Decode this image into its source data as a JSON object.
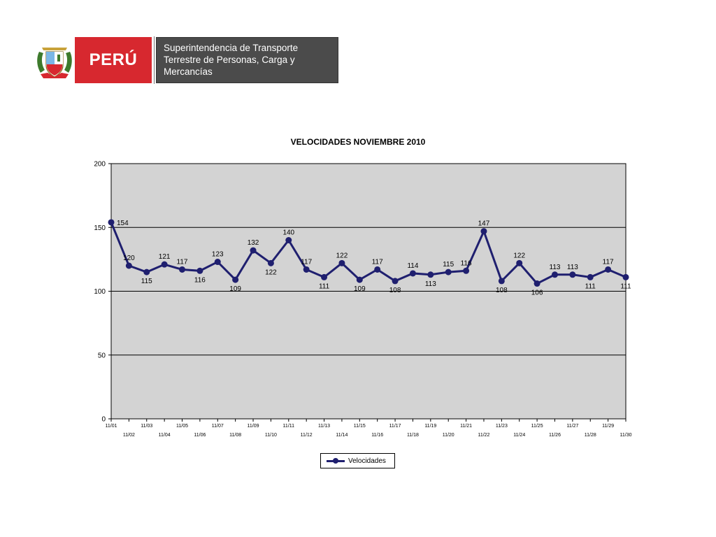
{
  "header": {
    "country": "PERÚ",
    "entity_lines": [
      "Superintendencia de Transporte",
      "Terrestre de Personas, Carga y",
      "Mercancías"
    ]
  },
  "colors": {
    "peru_red": "#d7282f",
    "entity_bg": "#4b4b4b",
    "plot_bg": "#d3d3d3",
    "series": "#1f1f6f"
  },
  "chart_data": {
    "type": "line",
    "title": "VELOCIDADES NOVIEMBRE 2010",
    "xlabel": "",
    "ylabel": "",
    "ylim": [
      0,
      200
    ],
    "yticks": [
      0,
      50,
      100,
      150,
      200
    ],
    "grid": "horizontal",
    "legend_position": "bottom-center",
    "categories": [
      "11/01",
      "11/02",
      "11/03",
      "11/04",
      "11/05",
      "11/06",
      "11/07",
      "11/08",
      "11/09",
      "11/10",
      "11/11",
      "11/12",
      "11/13",
      "11/14",
      "11/15",
      "11/16",
      "11/17",
      "11/18",
      "11/19",
      "11/20",
      "11/21",
      "11/22",
      "11/23",
      "11/24",
      "11/25",
      "11/26",
      "11/27",
      "11/28",
      "11/29",
      "11/30"
    ],
    "series": [
      {
        "name": "Velocidades",
        "values": [
          154,
          120,
          115,
          121,
          117,
          116,
          123,
          109,
          132,
          122,
          140,
          117,
          111,
          122,
          109,
          117,
          108,
          114,
          113,
          115,
          116,
          147,
          108,
          122,
          106,
          113,
          113,
          111,
          117,
          111
        ]
      }
    ],
    "data_labels": [
      "154",
      "120",
      "115",
      "121",
      "117",
      "116",
      "123",
      "109",
      "132",
      "122",
      "140",
      "117",
      "111",
      "122",
      "109",
      "117",
      "108",
      "114",
      "113",
      "115",
      "116",
      "147",
      "108",
      "122",
      "106",
      "113",
      "113",
      "111",
      "117",
      "111"
    ]
  }
}
